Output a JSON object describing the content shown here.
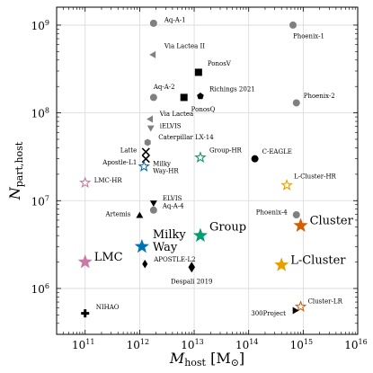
{
  "chart_data": {
    "type": "scatter",
    "xlabel": "M_host [M_⊙]",
    "ylabel": "N_part,host",
    "xscale": "log",
    "yscale": "log",
    "xlim": [
      30000000000.0,
      1e+16
    ],
    "ylim": [
      300000.0,
      1600000000.0
    ],
    "grid": true,
    "x_ticks": [
      {
        "value": 100000000000.0,
        "label": "10",
        "exp": "11"
      },
      {
        "value": 1000000000000.0,
        "label": "10",
        "exp": "12"
      },
      {
        "value": 10000000000000.0,
        "label": "10",
        "exp": "13"
      },
      {
        "value": 100000000000000.0,
        "label": "10",
        "exp": "14"
      },
      {
        "value": 1000000000000000.0,
        "label": "10",
        "exp": "15"
      },
      {
        "value": 1e+16,
        "label": "10",
        "exp": "16"
      }
    ],
    "y_ticks": [
      {
        "value": 1000000.0,
        "label": "10",
        "exp": "6"
      },
      {
        "value": 10000000.0,
        "label": "10",
        "exp": "7"
      },
      {
        "value": 100000000.0,
        "label": "10",
        "exp": "8"
      },
      {
        "value": 1000000000.0,
        "label": "10",
        "exp": "9"
      }
    ],
    "points": [
      {
        "name": "Aq-A-1",
        "x": 1800000000000.0,
        "y": 1050000000.0,
        "marker": "circle",
        "color": "#808080",
        "size": 8,
        "label_dx": 12,
        "label_dy": -4,
        "font": 7,
        "label_color": "#000000"
      },
      {
        "name": "Phoenix-1",
        "x": 650000000000000.0,
        "y": 1000000000.0,
        "marker": "circle",
        "color": "#808080",
        "size": 8,
        "label_dx": 0,
        "label_dy": 12,
        "font": 7,
        "label_color": "#000000"
      },
      {
        "name": "Via Lactea II",
        "x": 1800000000000.0,
        "y": 460000000.0,
        "marker": "triangle-left",
        "color": "#808080",
        "size": 8,
        "label_dx": 12,
        "label_dy": -10,
        "font": 7,
        "label_color": "#000000"
      },
      {
        "name": "PonosV",
        "x": 12000000000000.0,
        "y": 290000000.0,
        "marker": "square",
        "color": "#000000",
        "size": 8,
        "label_dx": 10,
        "label_dy": -10,
        "font": 7,
        "label_color": "#000000"
      },
      {
        "name": "Aq-A-2",
        "x": 1800000000000.0,
        "y": 150000000.0,
        "marker": "circle",
        "color": "#808080",
        "size": 8,
        "label_dx": 0,
        "label_dy": -12,
        "font": 7,
        "label_color": "#000000"
      },
      {
        "name": "PonosQ",
        "x": 6500000000000.0,
        "y": 150000000.0,
        "marker": "square",
        "color": "#000000",
        "size": 8,
        "label_dx": 8,
        "label_dy": 13,
        "font": 7,
        "label_color": "#000000"
      },
      {
        "name": "Richings 2021",
        "x": 13000000000000.0,
        "y": 155000000.0,
        "marker": "pentagon",
        "color": "#000000",
        "size": 8,
        "label_dx": 10,
        "label_dy": -8,
        "font": 7,
        "label_color": "#000000"
      },
      {
        "name": "Phoenix-2",
        "x": 750000000000000.0,
        "y": 130000000.0,
        "marker": "circle",
        "color": "#808080",
        "size": 8,
        "label_dx": 8,
        "label_dy": -8,
        "font": 7,
        "label_color": "#000000"
      },
      {
        "name": "Via Lactea",
        "x": 1600000000000.0,
        "y": 85000000.0,
        "marker": "triangle-left",
        "color": "#808080",
        "size": 8,
        "label_dx": 10,
        "label_dy": -6,
        "font": 7,
        "label_color": "#000000"
      },
      {
        "name": "iELVIS",
        "x": 1600000000000.0,
        "y": 68000000.0,
        "marker": "triangle-down",
        "color": "#808080",
        "size": 8,
        "label_dx": 10,
        "label_dy": -2,
        "font": 7,
        "label_color": "#000000"
      },
      {
        "name": "Caterpillar LX-14",
        "x": 1400000000000.0,
        "y": 46000000.0,
        "marker": "hexagon",
        "color": "#808080",
        "size": 8,
        "label_dx": 12,
        "label_dy": -6,
        "font": 7,
        "label_color": "#000000"
      },
      {
        "name": "Latte",
        "x": 1300000000000.0,
        "y": 36000000.0,
        "marker": "x",
        "color": "#000000",
        "size": 8,
        "label_dx": -10,
        "label_dy": -2,
        "font": 7,
        "label_color": "#000000",
        "anchor": "end"
      },
      {
        "name": "Apostle-L1",
        "x": 1300000000000.0,
        "y": 30000000.0,
        "marker": "x",
        "color": "#000000",
        "size": 8,
        "label_dx": -10,
        "label_dy": 4,
        "font": 7,
        "label_color": "#000000",
        "anchor": "end"
      },
      {
        "name": "Milky Way-HR",
        "x": 1200000000000.0,
        "y": 24500000.0,
        "marker": "star-open",
        "color": "#0072b2",
        "size": 11,
        "label_dx": 10,
        "label_dy": -3,
        "font": 7,
        "label_color": "#0072b2",
        "multiline": [
          "Milky",
          "Way-HR"
        ]
      },
      {
        "name": "Group-HR",
        "x": 13000000000000.0,
        "y": 31000000.0,
        "marker": "star-open",
        "color": "#009e73",
        "size": 11,
        "label_dx": 10,
        "label_dy": -8,
        "font": 7,
        "label_color": "#009e73"
      },
      {
        "name": "C-EAGLE",
        "x": 130000000000000.0,
        "y": 30000000.0,
        "marker": "circle",
        "color": "#000000",
        "size": 8,
        "label_dx": 8,
        "label_dy": -8,
        "font": 7,
        "label_color": "#000000"
      },
      {
        "name": "LMC-HR",
        "x": 100000000000.0,
        "y": 16000000.0,
        "marker": "star-open",
        "color": "#cc79a7",
        "size": 11,
        "label_dx": 10,
        "label_dy": -3,
        "font": 7,
        "label_color": "#cc79a7"
      },
      {
        "name": "L-Cluster-HR",
        "x": 500000000000000.0,
        "y": 15000000.0,
        "marker": "star-open",
        "color": "#e69f00",
        "size": 11,
        "label_dx": 8,
        "label_dy": -10,
        "font": 7,
        "label_color": "#e69f00"
      },
      {
        "name": "ELVIS",
        "x": 1800000000000.0,
        "y": 9500000.0,
        "marker": "triangle-down",
        "color": "#000000",
        "size": 8,
        "label_dx": 10,
        "label_dy": -5,
        "font": 7,
        "label_color": "#000000"
      },
      {
        "name": "Aq-A-4",
        "x": 1800000000000.0,
        "y": 7800000.0,
        "marker": "circle",
        "color": "#808080",
        "size": 8,
        "label_dx": 10,
        "label_dy": -5,
        "font": 7,
        "label_color": "#000000"
      },
      {
        "name": "Artemis",
        "x": 1000000000000.0,
        "y": 6700000.0,
        "marker": "triangle-up",
        "color": "#000000",
        "size": 8,
        "label_dx": -10,
        "label_dy": -2,
        "font": 7,
        "label_color": "#000000",
        "anchor": "end"
      },
      {
        "name": "Phoenix-4",
        "x": 750000000000000.0,
        "y": 6900000.0,
        "marker": "circle",
        "color": "#808080",
        "size": 8,
        "label_dx": -10,
        "label_dy": -3,
        "font": 7,
        "label_color": "#000000",
        "anchor": "end"
      },
      {
        "name": "Group",
        "x": 13000000000000.0,
        "y": 4000000.0,
        "marker": "star",
        "color": "#009e73",
        "size": 17,
        "label_dx": 10,
        "label_dy": -10,
        "font": 13,
        "label_color": "#009e73"
      },
      {
        "name": "Milky Way",
        "x": 1100000000000.0,
        "y": 3000000.0,
        "marker": "star",
        "color": "#0072b2",
        "size": 17,
        "label_dx": 12,
        "label_dy": -14,
        "font": 13,
        "label_color": "#0072b2",
        "multiline": [
          "Milky",
          "Way"
        ]
      },
      {
        "name": "Cluster",
        "x": 900000000000000.0,
        "y": 5200000.0,
        "marker": "star",
        "color": "#d55e00",
        "size": 17,
        "label_dx": 10,
        "label_dy": -6,
        "font": 13,
        "label_color": "#d55e00"
      },
      {
        "name": "LMC",
        "x": 100000000000.0,
        "y": 2000000.0,
        "marker": "star",
        "color": "#cc79a7",
        "size": 17,
        "label_dx": 10,
        "label_dy": -6,
        "font": 13,
        "label_color": "#cc79a7"
      },
      {
        "name": "APOSTLE-L2",
        "x": 1250000000000.0,
        "y": 1900000.0,
        "marker": "diamond",
        "color": "#000000",
        "size": 8,
        "label_dx": 10,
        "label_dy": -5,
        "font": 7,
        "label_color": "#000000"
      },
      {
        "name": "Despali 2019",
        "x": 9000000000000.0,
        "y": 1750000.0,
        "marker": "diamond",
        "color": "#000000",
        "size": 10,
        "label_dx": 0,
        "label_dy": 16,
        "font": 7,
        "label_color": "#000000",
        "anchor": "middle"
      },
      {
        "name": "L-Cluster",
        "x": 400000000000000.0,
        "y": 1850000.0,
        "marker": "star",
        "color": "#e69f00",
        "size": 17,
        "label_dx": 10,
        "label_dy": -6,
        "font": 13,
        "label_color": "#e69f00"
      },
      {
        "name": "Cluster-LR",
        "x": 900000000000000.0,
        "y": 620000.0,
        "marker": "star-open",
        "color": "#d55e00",
        "size": 11,
        "label_dx": 8,
        "label_dy": -6,
        "font": 7,
        "label_color": "#d55e00"
      },
      {
        "name": "NIHAO",
        "x": 100000000000.0,
        "y": 520000.0,
        "marker": "plus",
        "color": "#000000",
        "size": 9,
        "label_dx": 12,
        "label_dy": -7,
        "font": 7,
        "label_color": "#000000"
      },
      {
        "name": "300Project",
        "x": 700000000000000.0,
        "y": 560000.0,
        "marker": "triangle-right",
        "color": "#000000",
        "size": 8,
        "label_dx": -10,
        "label_dy": 3,
        "font": 7,
        "label_color": "#000000",
        "anchor": "end"
      }
    ]
  }
}
